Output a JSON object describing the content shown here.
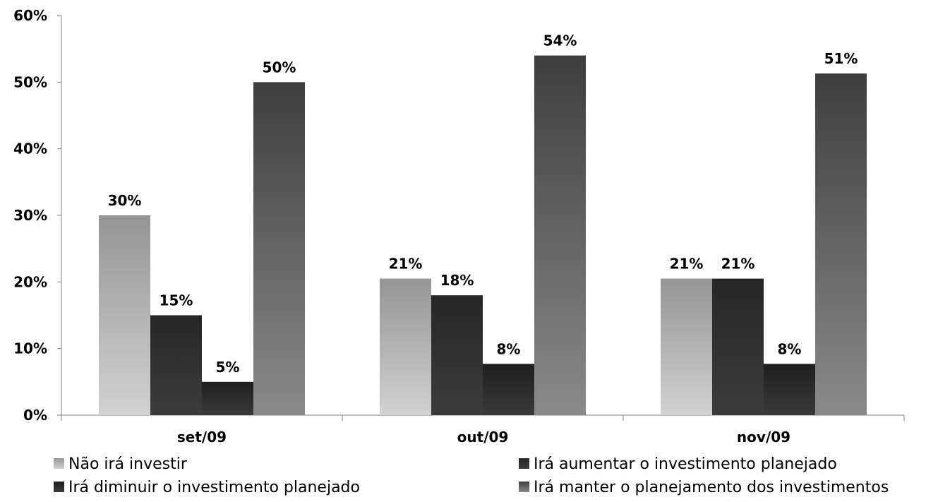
{
  "chart_data": {
    "type": "bar",
    "categories": [
      "set/09",
      "out/09",
      "nov/09"
    ],
    "series": [
      {
        "name": "Não irá investir",
        "values": [
          30,
          20.5,
          20.5
        ],
        "labels": [
          "30%",
          "21%",
          "21%"
        ],
        "gradient": [
          "#959595",
          "#d2d2d2"
        ]
      },
      {
        "name": "Irá aumentar o investimento planejado",
        "values": [
          15,
          18,
          20.5
        ],
        "labels": [
          "15%",
          "18%",
          "21%"
        ],
        "gradient": [
          "#262626",
          "#3c3c3c"
        ]
      },
      {
        "name": "Irá diminuir o investimento planejado",
        "values": [
          5,
          7.7,
          7.7
        ],
        "labels": [
          "5%",
          "8%",
          "8%"
        ],
        "gradient": [
          "#1e1e1e",
          "#3a3a3a"
        ]
      },
      {
        "name": "Irá manter o planejamento dos investimentos",
        "values": [
          50,
          54,
          51.3
        ],
        "labels": [
          "50%",
          "54%",
          "51%"
        ],
        "gradient": [
          "#3e3e3e",
          "#8a8a8a"
        ]
      }
    ],
    "yticks": [
      "0%",
      "10%",
      "20%",
      "30%",
      "40%",
      "50%",
      "60%"
    ],
    "ylim": [
      0,
      60
    ],
    "grid": false,
    "legend_position": "bottom"
  }
}
